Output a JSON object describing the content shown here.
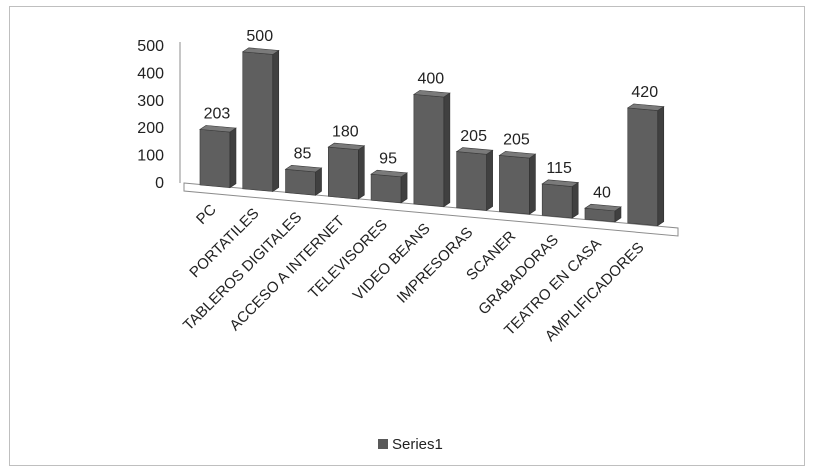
{
  "chart_data": {
    "type": "bar",
    "style": "3d-column",
    "categories": [
      "PC",
      "PORTATILES",
      "TABLEROS DIGITALES",
      "ACCESO A INTERNET",
      "TELEVISORES",
      "VIDEO BEANS",
      "IMPRESORAS",
      "SCANER",
      "GRABADORAS",
      "TEATRO EN CASA",
      "AMPLIFICADORES"
    ],
    "series": [
      {
        "name": "Series1",
        "values": [
          203,
          500,
          85,
          180,
          95,
          400,
          205,
          205,
          115,
          40,
          420
        ],
        "color": "#595959"
      }
    ],
    "yticks": [
      0,
      100,
      200,
      300,
      400,
      500
    ],
    "ylim": [
      0,
      500
    ],
    "data_labels": true,
    "grid": false,
    "legend": {
      "position": "bottom",
      "entries": [
        "Series1"
      ]
    }
  }
}
